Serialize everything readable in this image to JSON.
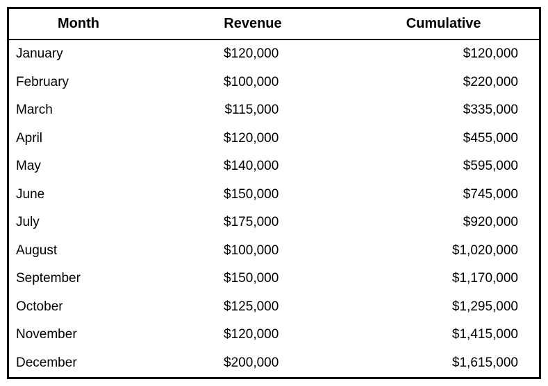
{
  "table": {
    "type": "table",
    "background_color": "#ffffff",
    "border_color": "#000000",
    "border_width": 3,
    "header_border_width": 2,
    "font_family": "Arial",
    "header_fontsize": 20,
    "header_fontweight": "bold",
    "cell_fontsize": 19,
    "text_color": "#000000",
    "columns": [
      {
        "label": "Month",
        "align": "left",
        "width": "28%"
      },
      {
        "label": "Revenue",
        "align": "right",
        "width": "36%"
      },
      {
        "label": "Cumulative",
        "align": "right",
        "width": "36%"
      }
    ],
    "rows": [
      {
        "month": "January",
        "revenue": "$120,000",
        "cumulative": "$120,000"
      },
      {
        "month": "February",
        "revenue": "$100,000",
        "cumulative": "$220,000"
      },
      {
        "month": "March",
        "revenue": "$115,000",
        "cumulative": "$335,000"
      },
      {
        "month": "April",
        "revenue": "$120,000",
        "cumulative": "$455,000"
      },
      {
        "month": "May",
        "revenue": "$140,000",
        "cumulative": "$595,000"
      },
      {
        "month": "June",
        "revenue": "$150,000",
        "cumulative": "$745,000"
      },
      {
        "month": "July",
        "revenue": "$175,000",
        "cumulative": "$920,000"
      },
      {
        "month": "August",
        "revenue": "$100,000",
        "cumulative": "$1,020,000"
      },
      {
        "month": "September",
        "revenue": "$150,000",
        "cumulative": "$1,170,000"
      },
      {
        "month": "October",
        "revenue": "$125,000",
        "cumulative": "$1,295,000"
      },
      {
        "month": "November",
        "revenue": "$120,000",
        "cumulative": "$1,415,000"
      },
      {
        "month": "December",
        "revenue": "$200,000",
        "cumulative": "$1,615,000"
      }
    ]
  }
}
